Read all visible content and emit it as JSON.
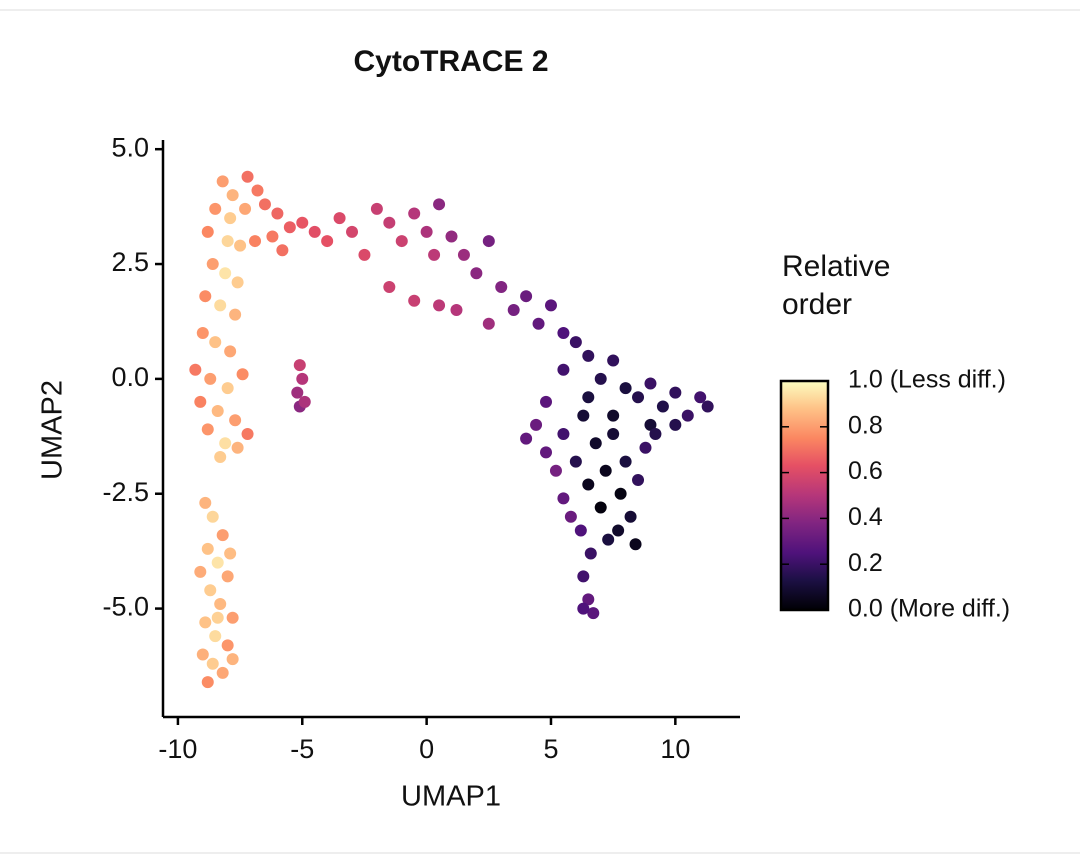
{
  "chart_data": {
    "type": "scatter",
    "title": "CytoTRACE 2",
    "x_label": "UMAP1",
    "y_label": "UMAP2",
    "x": [
      -8.2,
      -7.8,
      -7.2,
      -6.8,
      -8.5,
      -7.9,
      -7.3,
      -8.8,
      -8.0,
      -7.5,
      -6.9,
      -8.6,
      -8.1,
      -7.6,
      -8.9,
      -8.3,
      -7.7,
      -9.0,
      -8.5,
      -7.9,
      -9.3,
      -8.7,
      -8.0,
      -7.4,
      -9.1,
      -8.4,
      -7.7,
      -8.8,
      -8.1,
      -7.6,
      -8.3,
      -7.2,
      -6.5,
      -6.0,
      -5.5,
      -5.8,
      -6.2,
      -5.0,
      -4.5,
      -4.0,
      -3.5,
      -3.0,
      -2.5,
      -2.0,
      -1.5,
      -1.0,
      -0.5,
      0.0,
      0.5,
      0.3,
      1.0,
      1.5,
      -1.5,
      -0.5,
      0.5,
      2.0,
      2.5,
      1.2,
      3.0,
      3.5,
      2.5,
      4.0,
      4.5,
      5.0,
      5.5,
      6.0,
      5.5,
      6.5,
      7.0,
      7.5,
      8.0,
      8.5,
      9.0,
      9.5,
      10.0,
      10.5,
      11.0,
      11.3,
      9.0,
      10.0,
      6.5,
      7.5,
      -5.1,
      -5.0,
      -5.2,
      -5.1,
      -4.9,
      4.0,
      4.4,
      4.8,
      4.8,
      5.2,
      5.5,
      5.8,
      5.5,
      6.0,
      6.3,
      6.5,
      6.8,
      7.0,
      7.2,
      7.5,
      7.8,
      7.7,
      8.0,
      8.2,
      8.5,
      8.4,
      8.8,
      9.2,
      6.2,
      6.6,
      6.3,
      6.5,
      6.7,
      6.3,
      7.3,
      -8.9,
      -8.6,
      -8.2,
      -8.8,
      -8.4,
      -8.0,
      -8.7,
      -8.3,
      -7.8,
      -8.9,
      -8.5,
      -8.0,
      -9.0,
      -8.6,
      -8.2,
      -8.8,
      -7.8,
      -8.4,
      -9.1,
      -7.9
    ],
    "y": [
      4.3,
      4.0,
      4.4,
      4.1,
      3.7,
      3.5,
      3.7,
      3.2,
      3.0,
      2.9,
      3.0,
      2.5,
      2.3,
      2.1,
      1.8,
      1.6,
      1.4,
      1.0,
      0.8,
      0.6,
      0.2,
      0.0,
      -0.2,
      0.1,
      -0.5,
      -0.7,
      -0.9,
      -1.1,
      -1.4,
      -1.5,
      -1.7,
      -1.2,
      3.8,
      3.6,
      3.3,
      2.8,
      3.1,
      3.4,
      3.2,
      3.0,
      3.5,
      3.2,
      2.7,
      3.7,
      3.4,
      3.0,
      3.6,
      3.2,
      3.8,
      2.7,
      3.1,
      2.7,
      2.0,
      1.7,
      1.6,
      2.3,
      3.0,
      1.5,
      2.0,
      1.5,
      1.2,
      1.8,
      1.2,
      1.6,
      1.0,
      0.8,
      0.2,
      0.5,
      0.0,
      0.4,
      -0.2,
      -0.4,
      -0.1,
      -0.6,
      -0.3,
      -0.8,
      -0.4,
      -0.6,
      -1.0,
      -1.0,
      -0.4,
      -0.8,
      0.3,
      0.0,
      -0.3,
      -0.6,
      -0.5,
      -1.3,
      -1.0,
      -0.5,
      -1.6,
      -2.0,
      -2.6,
      -3.0,
      -1.2,
      -1.8,
      -0.8,
      -2.3,
      -1.4,
      -2.8,
      -2.0,
      -1.2,
      -2.5,
      -3.3,
      -1.8,
      -3.0,
      -2.2,
      -3.6,
      -1.5,
      -1.2,
      -3.3,
      -3.8,
      -4.3,
      -4.8,
      -5.1,
      -5.0,
      -3.5,
      -2.7,
      -3.0,
      -3.4,
      -3.7,
      -4.0,
      -4.3,
      -4.6,
      -4.9,
      -5.2,
      -5.3,
      -5.6,
      -5.8,
      -6.0,
      -6.2,
      -6.4,
      -6.6,
      -6.1,
      -5.2,
      -4.2,
      -3.8
    ],
    "color_values": [
      0.8,
      0.85,
      0.7,
      0.72,
      0.78,
      0.9,
      0.82,
      0.75,
      0.92,
      0.88,
      0.74,
      0.8,
      0.95,
      0.9,
      0.76,
      0.93,
      0.85,
      0.78,
      0.88,
      0.82,
      0.72,
      0.8,
      0.9,
      0.76,
      0.74,
      0.86,
      0.8,
      0.78,
      0.94,
      0.85,
      0.9,
      0.72,
      0.7,
      0.68,
      0.66,
      0.7,
      0.72,
      0.64,
      0.62,
      0.63,
      0.6,
      0.58,
      0.6,
      0.55,
      0.54,
      0.56,
      0.5,
      0.48,
      0.4,
      0.52,
      0.42,
      0.44,
      0.56,
      0.55,
      0.52,
      0.4,
      0.35,
      0.5,
      0.38,
      0.35,
      0.45,
      0.32,
      0.3,
      0.28,
      0.25,
      0.2,
      0.22,
      0.18,
      0.15,
      0.18,
      0.12,
      0.15,
      0.2,
      0.14,
      0.18,
      0.2,
      0.22,
      0.18,
      0.1,
      0.15,
      0.12,
      0.08,
      0.55,
      0.5,
      0.45,
      0.4,
      0.48,
      0.3,
      0.32,
      0.28,
      0.3,
      0.35,
      0.3,
      0.32,
      0.22,
      0.15,
      0.1,
      0.05,
      0.08,
      0.02,
      0.05,
      0.1,
      0.03,
      0.08,
      0.12,
      0.1,
      0.18,
      0.05,
      0.2,
      0.15,
      0.25,
      0.2,
      0.22,
      0.3,
      0.28,
      0.25,
      0.12,
      0.85,
      0.92,
      0.8,
      0.88,
      0.95,
      0.82,
      0.9,
      0.86,
      0.8,
      0.88,
      0.93,
      0.78,
      0.84,
      0.9,
      0.82,
      0.76,
      0.85,
      0.91,
      0.83,
      0.87
    ],
    "colormap": "magma",
    "xlim": [
      -10.6,
      12.6
    ],
    "xticks": [
      -10,
      -5,
      0,
      5,
      10
    ],
    "ylim": [
      -7.36,
      5.2
    ],
    "yticks": [
      {
        "value": 5,
        "label": "5.0"
      },
      2.5,
      {
        "value": 0,
        "label": "0.0"
      },
      -2.5,
      {
        "value": -5,
        "label": "-5.0"
      }
    ],
    "colorbar": {
      "title": [
        "Relative",
        "order"
      ],
      "lim": [
        0,
        1
      ],
      "ticks": [
        {
          "value": 1,
          "label": "1.0 (Less diff.)"
        },
        0.8,
        0.6,
        0.4,
        0.2,
        {
          "value": 0,
          "label": "0.0 (More diff.)"
        }
      ]
    }
  }
}
